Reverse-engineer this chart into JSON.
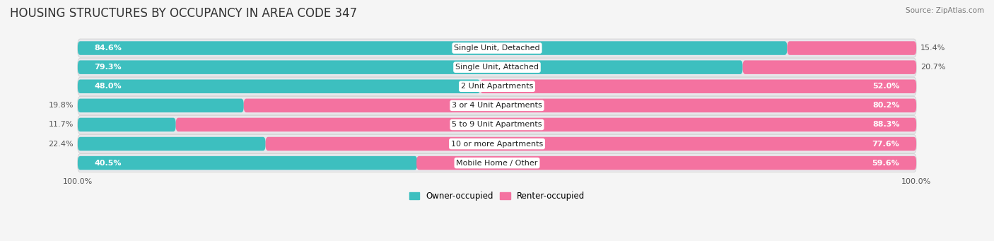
{
  "title": "HOUSING STRUCTURES BY OCCUPANCY IN AREA CODE 347",
  "source": "Source: ZipAtlas.com",
  "categories": [
    "Single Unit, Detached",
    "Single Unit, Attached",
    "2 Unit Apartments",
    "3 or 4 Unit Apartments",
    "5 to 9 Unit Apartments",
    "10 or more Apartments",
    "Mobile Home / Other"
  ],
  "owner_pct": [
    84.6,
    79.3,
    48.0,
    19.8,
    11.7,
    22.4,
    40.5
  ],
  "renter_pct": [
    15.4,
    20.7,
    52.0,
    80.2,
    88.3,
    77.6,
    59.6
  ],
  "owner_color": "#3DBFBF",
  "renter_color": "#F472A0",
  "row_bg_color": "#E8E8EC",
  "title_fontsize": 12,
  "label_fontsize": 8,
  "category_fontsize": 8,
  "legend_fontsize": 8.5,
  "source_fontsize": 7.5,
  "bg_color": "#F5F5F5"
}
